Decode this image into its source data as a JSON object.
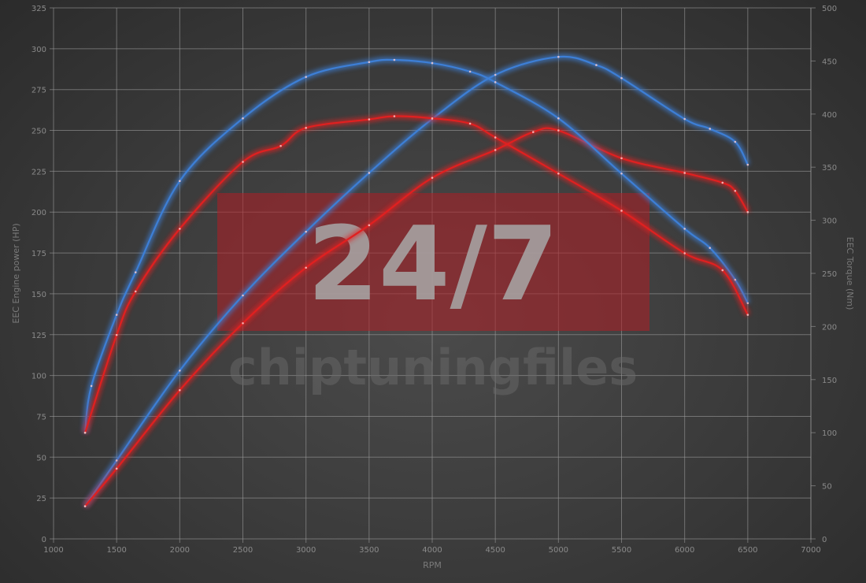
{
  "chart_data": {
    "type": "line",
    "title": "",
    "xlabel": "RPM",
    "ylabel_left": "EEC Engine power (HP)",
    "ylabel_right": "EEC Torque (Nm)",
    "xlim": [
      1000,
      7000
    ],
    "ylim_left": [
      0,
      325
    ],
    "ylim_right": [
      0,
      500
    ],
    "x_ticks": [
      1000,
      1500,
      2000,
      2500,
      3000,
      3500,
      4000,
      4500,
      5000,
      5500,
      6000,
      6500,
      7000
    ],
    "y_ticks_left": [
      0,
      25,
      50,
      75,
      100,
      125,
      150,
      175,
      200,
      225,
      250,
      275,
      300,
      325
    ],
    "y_ticks_right": [
      0,
      50,
      100,
      150,
      200,
      250,
      300,
      350,
      400,
      450,
      500
    ],
    "grid": true,
    "legend": "none",
    "series": [
      {
        "axis": "left",
        "color": "#3d7fd6",
        "x": [
          1250,
          1500,
          2000,
          2500,
          3000,
          3500,
          4000,
          4500,
          5000,
          5300,
          5500,
          6000,
          6200,
          6400,
          6500
        ],
        "y": [
          20,
          48,
          103,
          149,
          188,
          224,
          257,
          284,
          295,
          290,
          282,
          257,
          251,
          243,
          229
        ]
      },
      {
        "axis": "left",
        "color": "#e02020",
        "x": [
          1250,
          1500,
          2000,
          2500,
          3000,
          3500,
          4000,
          4500,
          4800,
          5000,
          5500,
          6000,
          6300,
          6400,
          6500
        ],
        "y": [
          20,
          43,
          91,
          132,
          166,
          192,
          221,
          238,
          249,
          250,
          233,
          224,
          218,
          213,
          200
        ]
      },
      {
        "axis": "right",
        "color": "#3d7fd6",
        "x": [
          1250,
          1300,
          1500,
          1650,
          2000,
          2500,
          3000,
          3500,
          3700,
          4000,
          4300,
          4500,
          5000,
          5500,
          6000,
          6200,
          6400,
          6500
        ],
        "y": [
          100,
          144,
          211,
          251,
          337,
          396,
          435,
          449,
          451,
          448,
          440,
          430,
          396,
          344,
          292,
          274,
          244,
          222
        ]
      },
      {
        "axis": "right",
        "color": "#e02020",
        "x": [
          1250,
          1500,
          1650,
          2000,
          2500,
          2800,
          3000,
          3500,
          3700,
          4000,
          4300,
          4500,
          5000,
          5500,
          6000,
          6300,
          6500
        ],
        "y": [
          100,
          192,
          233,
          292,
          355,
          370,
          387,
          395,
          398,
          396,
          391,
          378,
          344,
          309,
          269,
          253,
          211
        ]
      }
    ]
  },
  "watermark": {
    "logo_text": "24/7",
    "brand_text": "chiptuningfiles",
    "box_color": "#b01e24"
  }
}
